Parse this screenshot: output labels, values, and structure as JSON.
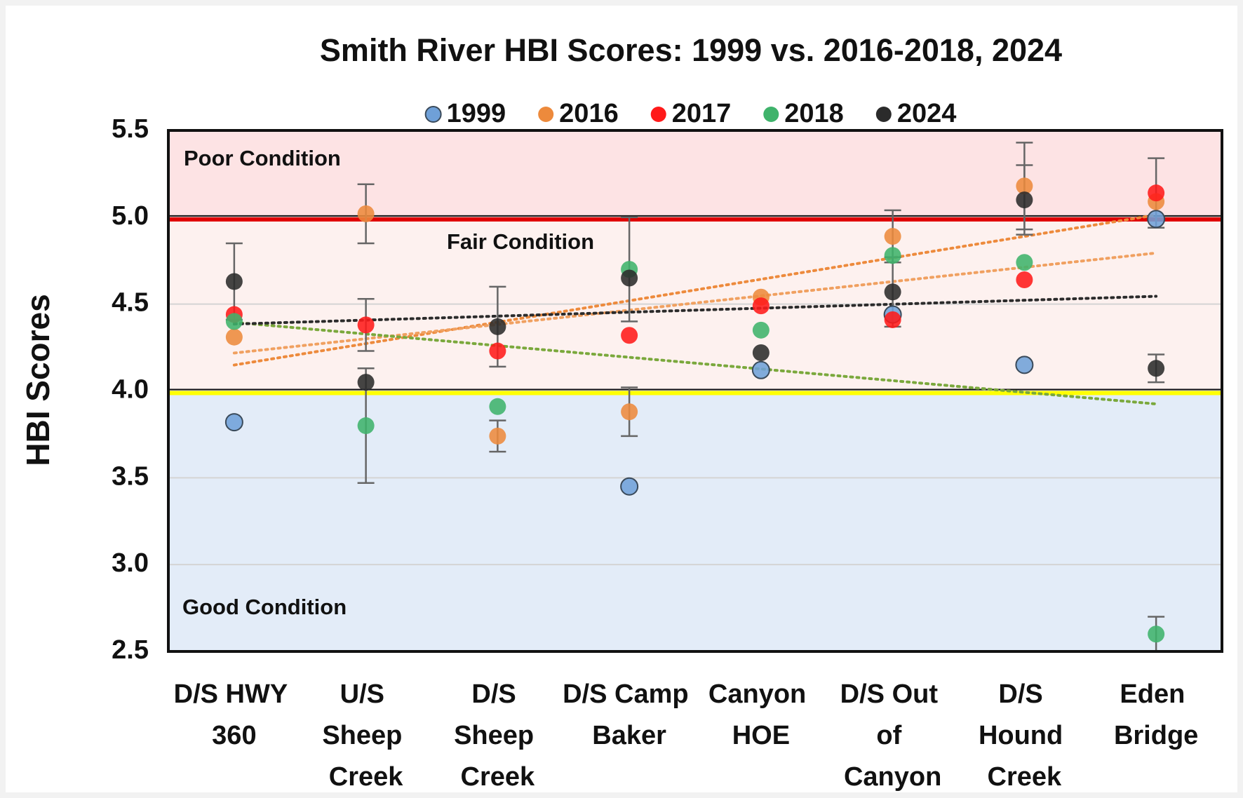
{
  "chart_data": {
    "type": "scatter",
    "title": "Smith River HBI Scores: 1999 vs. 2016-2018, 2024",
    "ylabel": "HBI Scores",
    "categories": [
      "D/S HWY 360",
      "U/S Sheep Creek",
      "D/S Sheep Creek",
      "D/S Camp Baker",
      "Canyon HOE",
      "D/S Out of Canyon",
      "D/S Hound Creek",
      "Eden Bridge"
    ],
    "ylim": [
      2.5,
      5.5
    ],
    "yticks": [
      {
        "value": 2.5,
        "label": "2.5"
      },
      {
        "value": 3,
        "label": "3.0"
      },
      {
        "value": 3.5,
        "label": "3.5"
      },
      {
        "value": 4,
        "label": "4.0"
      },
      {
        "value": 4.5,
        "label": "4.5"
      },
      {
        "value": 5,
        "label": "5.0"
      },
      {
        "value": 5.5,
        "label": "5.5"
      }
    ],
    "grid": true,
    "legend": "top",
    "zones": [
      {
        "label": "Poor Condition",
        "from": 5,
        "to": 5.5,
        "color": "#fde3e4",
        "line": "#e00000"
      },
      {
        "label": "Fair Condition",
        "from": 4,
        "to": 5,
        "color": "#fdf1ef",
        "line": "#ffff00"
      },
      {
        "label": "Good Condition",
        "from": 2.5,
        "to": 4,
        "color": "#e3ecf8"
      }
    ],
    "series": [
      {
        "name": "1999",
        "color": "#6fa0d8",
        "values": [
          3.82,
          null,
          null,
          3.45,
          4.12,
          4.44,
          4.15,
          4.99
        ],
        "errors": [
          null,
          null,
          null,
          null,
          null,
          null,
          null,
          null
        ],
        "trendline": false
      },
      {
        "name": "2016",
        "color": "#ed8a3c",
        "values": [
          4.31,
          5.02,
          3.74,
          3.88,
          4.54,
          4.89,
          5.18,
          5.09
        ],
        "errors": [
          null,
          0.17,
          0.09,
          0.14,
          null,
          0.15,
          0.25,
          null
        ],
        "trendline": true
      },
      {
        "name": "2017",
        "color": "#ff1a1a",
        "values": [
          4.44,
          4.38,
          4.23,
          4.32,
          4.49,
          4.41,
          4.64,
          5.14
        ],
        "errors": [
          null,
          0.15,
          null,
          null,
          null,
          null,
          null,
          0.2
        ],
        "trendline": true,
        "trend_color": "#f0a060"
      },
      {
        "name": "2018",
        "color": "#3fb36b",
        "values": [
          4.4,
          3.8,
          3.91,
          4.7,
          4.35,
          4.78,
          4.74,
          2.6
        ],
        "errors": [
          null,
          0.33,
          null,
          0.3,
          null,
          null,
          null,
          0.1
        ],
        "trendline": true,
        "trend_color": "#7aa83c"
      },
      {
        "name": "2024",
        "color": "#2b2b2b",
        "values": [
          4.63,
          4.05,
          4.37,
          4.65,
          4.22,
          4.57,
          5.1,
          4.13
        ],
        "errors": [
          0.22,
          null,
          0.23,
          null,
          null,
          0.2,
          0.2,
          0.08
        ],
        "trendline": true
      }
    ]
  }
}
